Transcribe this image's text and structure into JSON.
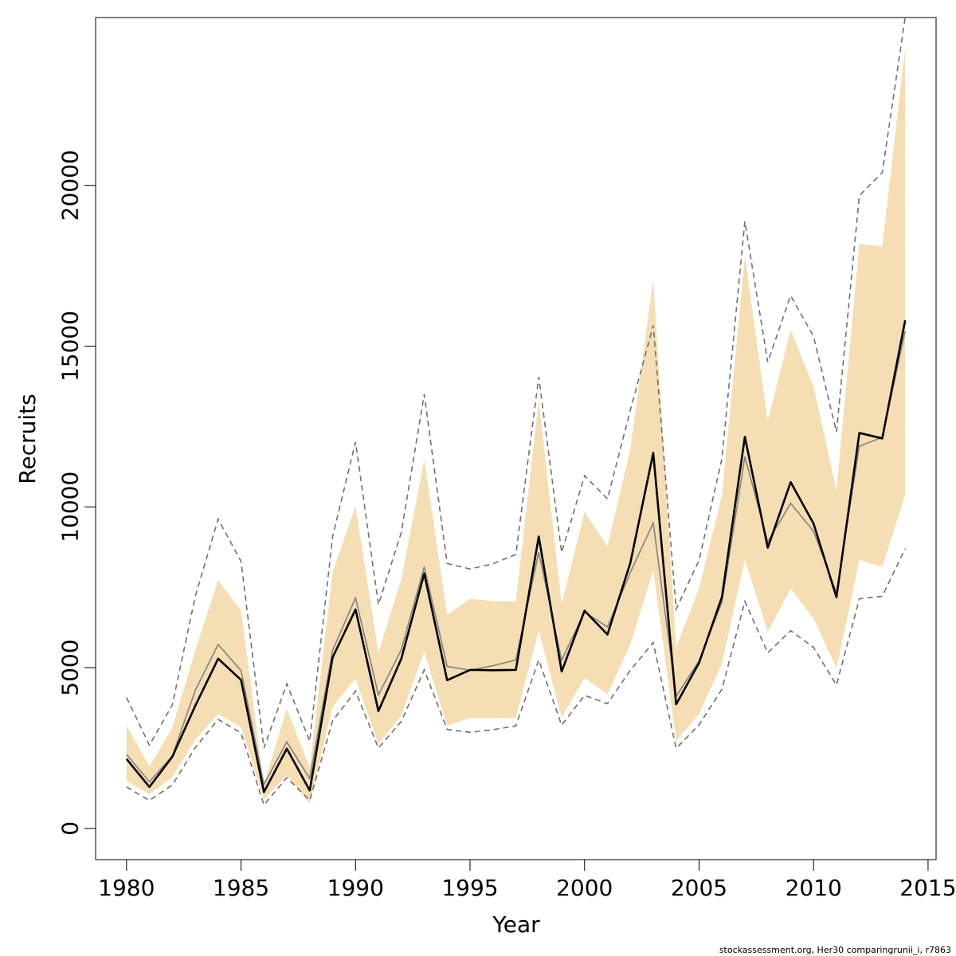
{
  "chart_data": {
    "type": "line",
    "xlabel": "Year",
    "ylabel": "Recruits",
    "caption": "stockassessment.org, Her30  comparingrunii_i, r7863",
    "xlim": [
      1978.65,
      2015.35
    ],
    "ylim": [
      -970,
      25220
    ],
    "x_ticks": [
      1980,
      1985,
      1990,
      1995,
      2000,
      2005,
      2010,
      2015
    ],
    "y_ticks": [
      0,
      5000,
      10000,
      15000,
      20000
    ],
    "grid": false,
    "legend": "none",
    "colors": {
      "band": "#f5deb3",
      "main_line": "#000000",
      "comparison_line": "#808080",
      "comparison_bounds": "#707070"
    },
    "x": [
      1980,
      1981,
      1982,
      1983,
      1984,
      1985,
      1986,
      1987,
      1988,
      1989,
      1990,
      1991,
      1992,
      1993,
      1994,
      1995,
      1996,
      1997,
      1998,
      1999,
      2000,
      2001,
      2002,
      2003,
      2004,
      2005,
      2006,
      2007,
      2008,
      2009,
      2010,
      2011,
      2012,
      2013,
      2014
    ],
    "series": [
      {
        "role": "band_upper",
        "values": [
          3200,
          1930,
          3130,
          5530,
          7720,
          6780,
          1370,
          3720,
          1900,
          7960,
          10020,
          5470,
          7750,
          11480,
          6650,
          7140,
          7070,
          7060,
          13310,
          6980,
          9840,
          8770,
          11800,
          17080,
          5630,
          7470,
          10350,
          17780,
          12670,
          15500,
          13740,
          10510,
          18180,
          18100,
          24280
        ]
      },
      {
        "role": "band_lower",
        "values": [
          1470,
          1070,
          1590,
          2760,
          3560,
          3150,
          900,
          1650,
          780,
          3780,
          4660,
          2620,
          3520,
          5500,
          3200,
          3430,
          3430,
          3440,
          6150,
          3450,
          4680,
          4170,
          5720,
          8030,
          2720,
          3560,
          5130,
          8360,
          6120,
          7450,
          6530,
          4970,
          8350,
          8130,
          10380
        ]
      },
      {
        "role": "main_estimate",
        "values": [
          2160,
          1290,
          2230,
          3810,
          5280,
          4620,
          1130,
          2480,
          1180,
          5320,
          6810,
          3650,
          5280,
          7930,
          4610,
          4930,
          4920,
          4930,
          9080,
          4880,
          6770,
          6030,
          8260,
          11680,
          3860,
          5150,
          7200,
          12180,
          8730,
          10770,
          9480,
          7190,
          12300,
          12130,
          15800
        ]
      },
      {
        "role": "comparison_estimate",
        "values": [
          2300,
          1450,
          2250,
          4290,
          5720,
          4910,
          1370,
          2690,
          1550,
          5540,
          7170,
          4150,
          5560,
          8140,
          5040,
          4920,
          5060,
          5240,
          8590,
          5230,
          6730,
          6270,
          7960,
          9500,
          4110,
          5210,
          7040,
          11560,
          8910,
          10110,
          9240,
          7330,
          11890,
          12160,
          15460
        ]
      },
      {
        "role": "comparison_upper",
        "values": [
          4070,
          2590,
          3840,
          7210,
          9620,
          8310,
          2500,
          4500,
          2710,
          9080,
          12020,
          6960,
          9210,
          13500,
          8240,
          8070,
          8230,
          8520,
          14040,
          8580,
          10970,
          10250,
          13010,
          15640,
          6820,
          8340,
          11510,
          18880,
          14500,
          16570,
          15300,
          12330,
          19680,
          20400,
          25220
        ]
      },
      {
        "role": "comparison_lower",
        "values": [
          1290,
          870,
          1350,
          2510,
          3390,
          2970,
          730,
          1580,
          870,
          3350,
          4270,
          2500,
          3330,
          4930,
          3080,
          2990,
          3070,
          3190,
          5240,
          3210,
          4140,
          3880,
          4920,
          5780,
          2490,
          3220,
          4330,
          7060,
          5460,
          6150,
          5630,
          4460,
          7140,
          7220,
          8700
        ]
      }
    ]
  }
}
